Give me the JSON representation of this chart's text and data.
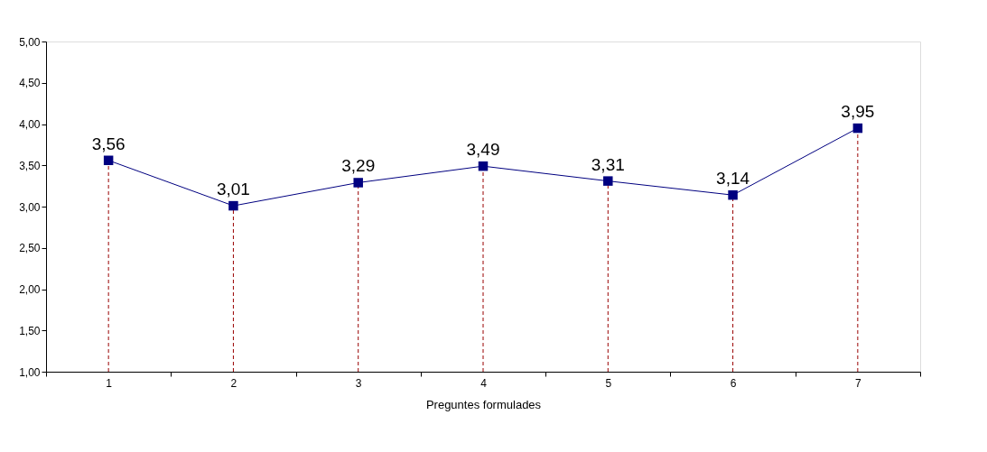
{
  "chart_data": {
    "type": "line",
    "xlabel": "Preguntes formulades",
    "categories": [
      "1",
      "2",
      "3",
      "4",
      "5",
      "6",
      "7"
    ],
    "series": [
      {
        "color": "#000080",
        "values": [
          3.56,
          3.01,
          3.29,
          3.49,
          3.31,
          3.14,
          3.95
        ],
        "value_labels": [
          "3,56",
          "3,01",
          "3,29",
          "3,49",
          "3,31",
          "3,14",
          "3,95"
        ]
      }
    ],
    "ylim": [
      1,
      5
    ],
    "yticks": [
      {
        "value": 1,
        "label": "1,00"
      },
      {
        "value": 1.5,
        "label": "1,50"
      },
      {
        "value": 2,
        "label": "2,00"
      },
      {
        "value": 2.5,
        "label": "2,50"
      },
      {
        "value": 3,
        "label": "3,00"
      },
      {
        "value": 3.5,
        "label": "3,50"
      },
      {
        "value": 4,
        "label": "4,00"
      },
      {
        "value": 4.5,
        "label": "4,50"
      },
      {
        "value": 5,
        "label": "5,00"
      }
    ],
    "ref_lines": [
      {
        "axis": "x",
        "value": "1",
        "color": "#990000",
        "line_style": "dashed"
      },
      {
        "axis": "x",
        "value": "2",
        "color": "#990000",
        "line_style": "dashed"
      },
      {
        "axis": "x",
        "value": "3",
        "color": "#990000",
        "line_style": "dashed"
      },
      {
        "axis": "x",
        "value": "4",
        "color": "#990000",
        "line_style": "dashed"
      },
      {
        "axis": "x",
        "value": "5",
        "color": "#990000",
        "line_style": "dashed"
      },
      {
        "axis": "x",
        "value": "6",
        "color": "#990000",
        "line_style": "dashed"
      },
      {
        "axis": "x",
        "value": "7",
        "color": "#990000",
        "line_style": "dashed"
      }
    ],
    "marker": "square",
    "line_style": "solid",
    "grid": false
  }
}
